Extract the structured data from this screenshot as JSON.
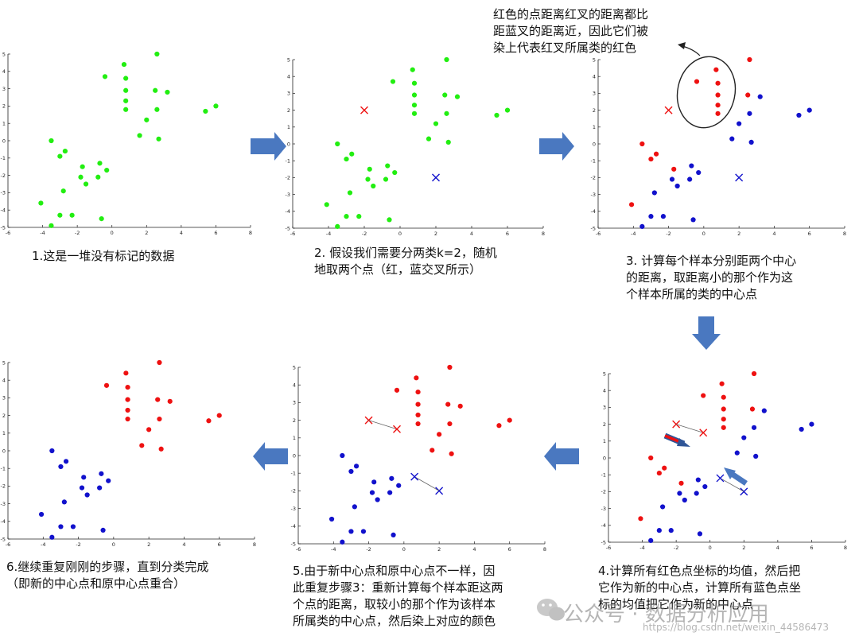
{
  "colors": {
    "green": "#22ee11",
    "red": "#ee1111",
    "blue": "#1111cc",
    "arrow": "#4a78c0",
    "arrow_dark": "#2f5597",
    "axis": "#222222"
  },
  "axis": {
    "x_ticks": [
      "-6",
      "-4",
      "-2",
      "0",
      "2",
      "4",
      "6",
      "8"
    ],
    "y_ticks": [
      "5",
      "4",
      "3",
      "2",
      "1",
      "0",
      "-1",
      "-2",
      "-3",
      "-4",
      "-5"
    ]
  },
  "captions": {
    "step1": "1.这是一堆没有标记的数据",
    "step2": "2. 假设我们需要分两类k=2，随机\n地取两个点（红，蓝交叉所示）",
    "step3": "3. 计算每个样本分别距两个中心\n的距离，取距离小的那个作为这\n个样本所属的类的中心点",
    "note": "红色的点距离红叉的距离都比\n距蓝叉的距离近，因此它们被\n染上代表红叉所属类的红色",
    "step4": "4.计算所有红色点坐标的均值，然后把\n它作为新的中心点，计算所有蓝色点坐\n标的均值把它作为新的中心点",
    "step5": "5.由于新中心点和原中心点不一样，因\n此重复步骤3：重新计算每个样本距这两\n个点的距离，取较小的那个作为该样本\n所属类的中心点，然后染上对应的颜色",
    "step6": "6.继续重复刚刚的步骤，直到分类完成\n（即新的中心点和原中心点重合）"
  },
  "watermark": {
    "brand": "公众号 · 数据分析应用",
    "url": "https://blog.csdn.net/weixin_44586473"
  },
  "chart_data": {
    "type": "scatter",
    "xlim": [
      -6,
      8
    ],
    "ylim": [
      -5,
      5
    ],
    "points": [
      {
        "x": 0.7,
        "y": 4.4,
        "cluster": "red"
      },
      {
        "x": 2.6,
        "y": 5.0,
        "cluster": "red"
      },
      {
        "x": -0.4,
        "y": 3.7,
        "cluster": "red"
      },
      {
        "x": 0.8,
        "y": 3.6,
        "cluster": "red"
      },
      {
        "x": 0.8,
        "y": 2.9,
        "cluster": "red"
      },
      {
        "x": 0.8,
        "y": 2.3,
        "cluster": "red"
      },
      {
        "x": 0.8,
        "y": 1.8,
        "cluster": "red"
      },
      {
        "x": 2.5,
        "y": 2.9,
        "cluster": "red"
      },
      {
        "x": 3.2,
        "y": 2.8,
        "cluster": "red"
      },
      {
        "x": 2.6,
        "y": 1.8,
        "cluster": "red"
      },
      {
        "x": 2.0,
        "y": 1.2,
        "cluster": "red"
      },
      {
        "x": 1.6,
        "y": 0.3,
        "cluster": "red"
      },
      {
        "x": 2.7,
        "y": 0.1,
        "cluster": "red"
      },
      {
        "x": 5.4,
        "y": 1.7,
        "cluster": "red"
      },
      {
        "x": 6.0,
        "y": 2.0,
        "cluster": "red"
      },
      {
        "x": -3.5,
        "y": 0.0,
        "cluster": "blue"
      },
      {
        "x": -2.7,
        "y": -0.6,
        "cluster": "blue"
      },
      {
        "x": -3.0,
        "y": -0.9,
        "cluster": "blue"
      },
      {
        "x": -1.7,
        "y": -1.5,
        "cluster": "blue"
      },
      {
        "x": -0.7,
        "y": -1.3,
        "cluster": "blue"
      },
      {
        "x": -0.3,
        "y": -1.7,
        "cluster": "blue"
      },
      {
        "x": -1.8,
        "y": -2.1,
        "cluster": "blue"
      },
      {
        "x": -0.8,
        "y": -2.1,
        "cluster": "blue"
      },
      {
        "x": -1.5,
        "y": -2.5,
        "cluster": "blue"
      },
      {
        "x": -2.8,
        "y": -2.9,
        "cluster": "blue"
      },
      {
        "x": -4.1,
        "y": -3.6,
        "cluster": "blue"
      },
      {
        "x": -3.0,
        "y": -4.3,
        "cluster": "blue"
      },
      {
        "x": -2.3,
        "y": -4.3,
        "cluster": "blue"
      },
      {
        "x": -0.6,
        "y": -4.5,
        "cluster": "blue"
      },
      {
        "x": -3.5,
        "y": -4.9,
        "cluster": "blue"
      }
    ],
    "centers": {
      "initial": {
        "red": {
          "x": -2.0,
          "y": 2.0
        },
        "blue": {
          "x": 2.0,
          "y": -2.0
        }
      },
      "updated": {
        "red": {
          "x": -0.4,
          "y": 1.5
        },
        "blue": {
          "x": 0.6,
          "y": -1.2
        }
      }
    },
    "panels": [
      {
        "title": "",
        "coloring": "none",
        "centers": "none"
      },
      {
        "title": "",
        "coloring": "none",
        "centers": "initial"
      },
      {
        "title": "",
        "coloring": "initial",
        "centers": "initial"
      },
      {
        "title": "",
        "coloring": "initial",
        "centers": "both"
      },
      {
        "title": "",
        "coloring": "final",
        "centers": "both"
      },
      {
        "title": "",
        "coloring": "final",
        "centers": "none"
      }
    ]
  }
}
